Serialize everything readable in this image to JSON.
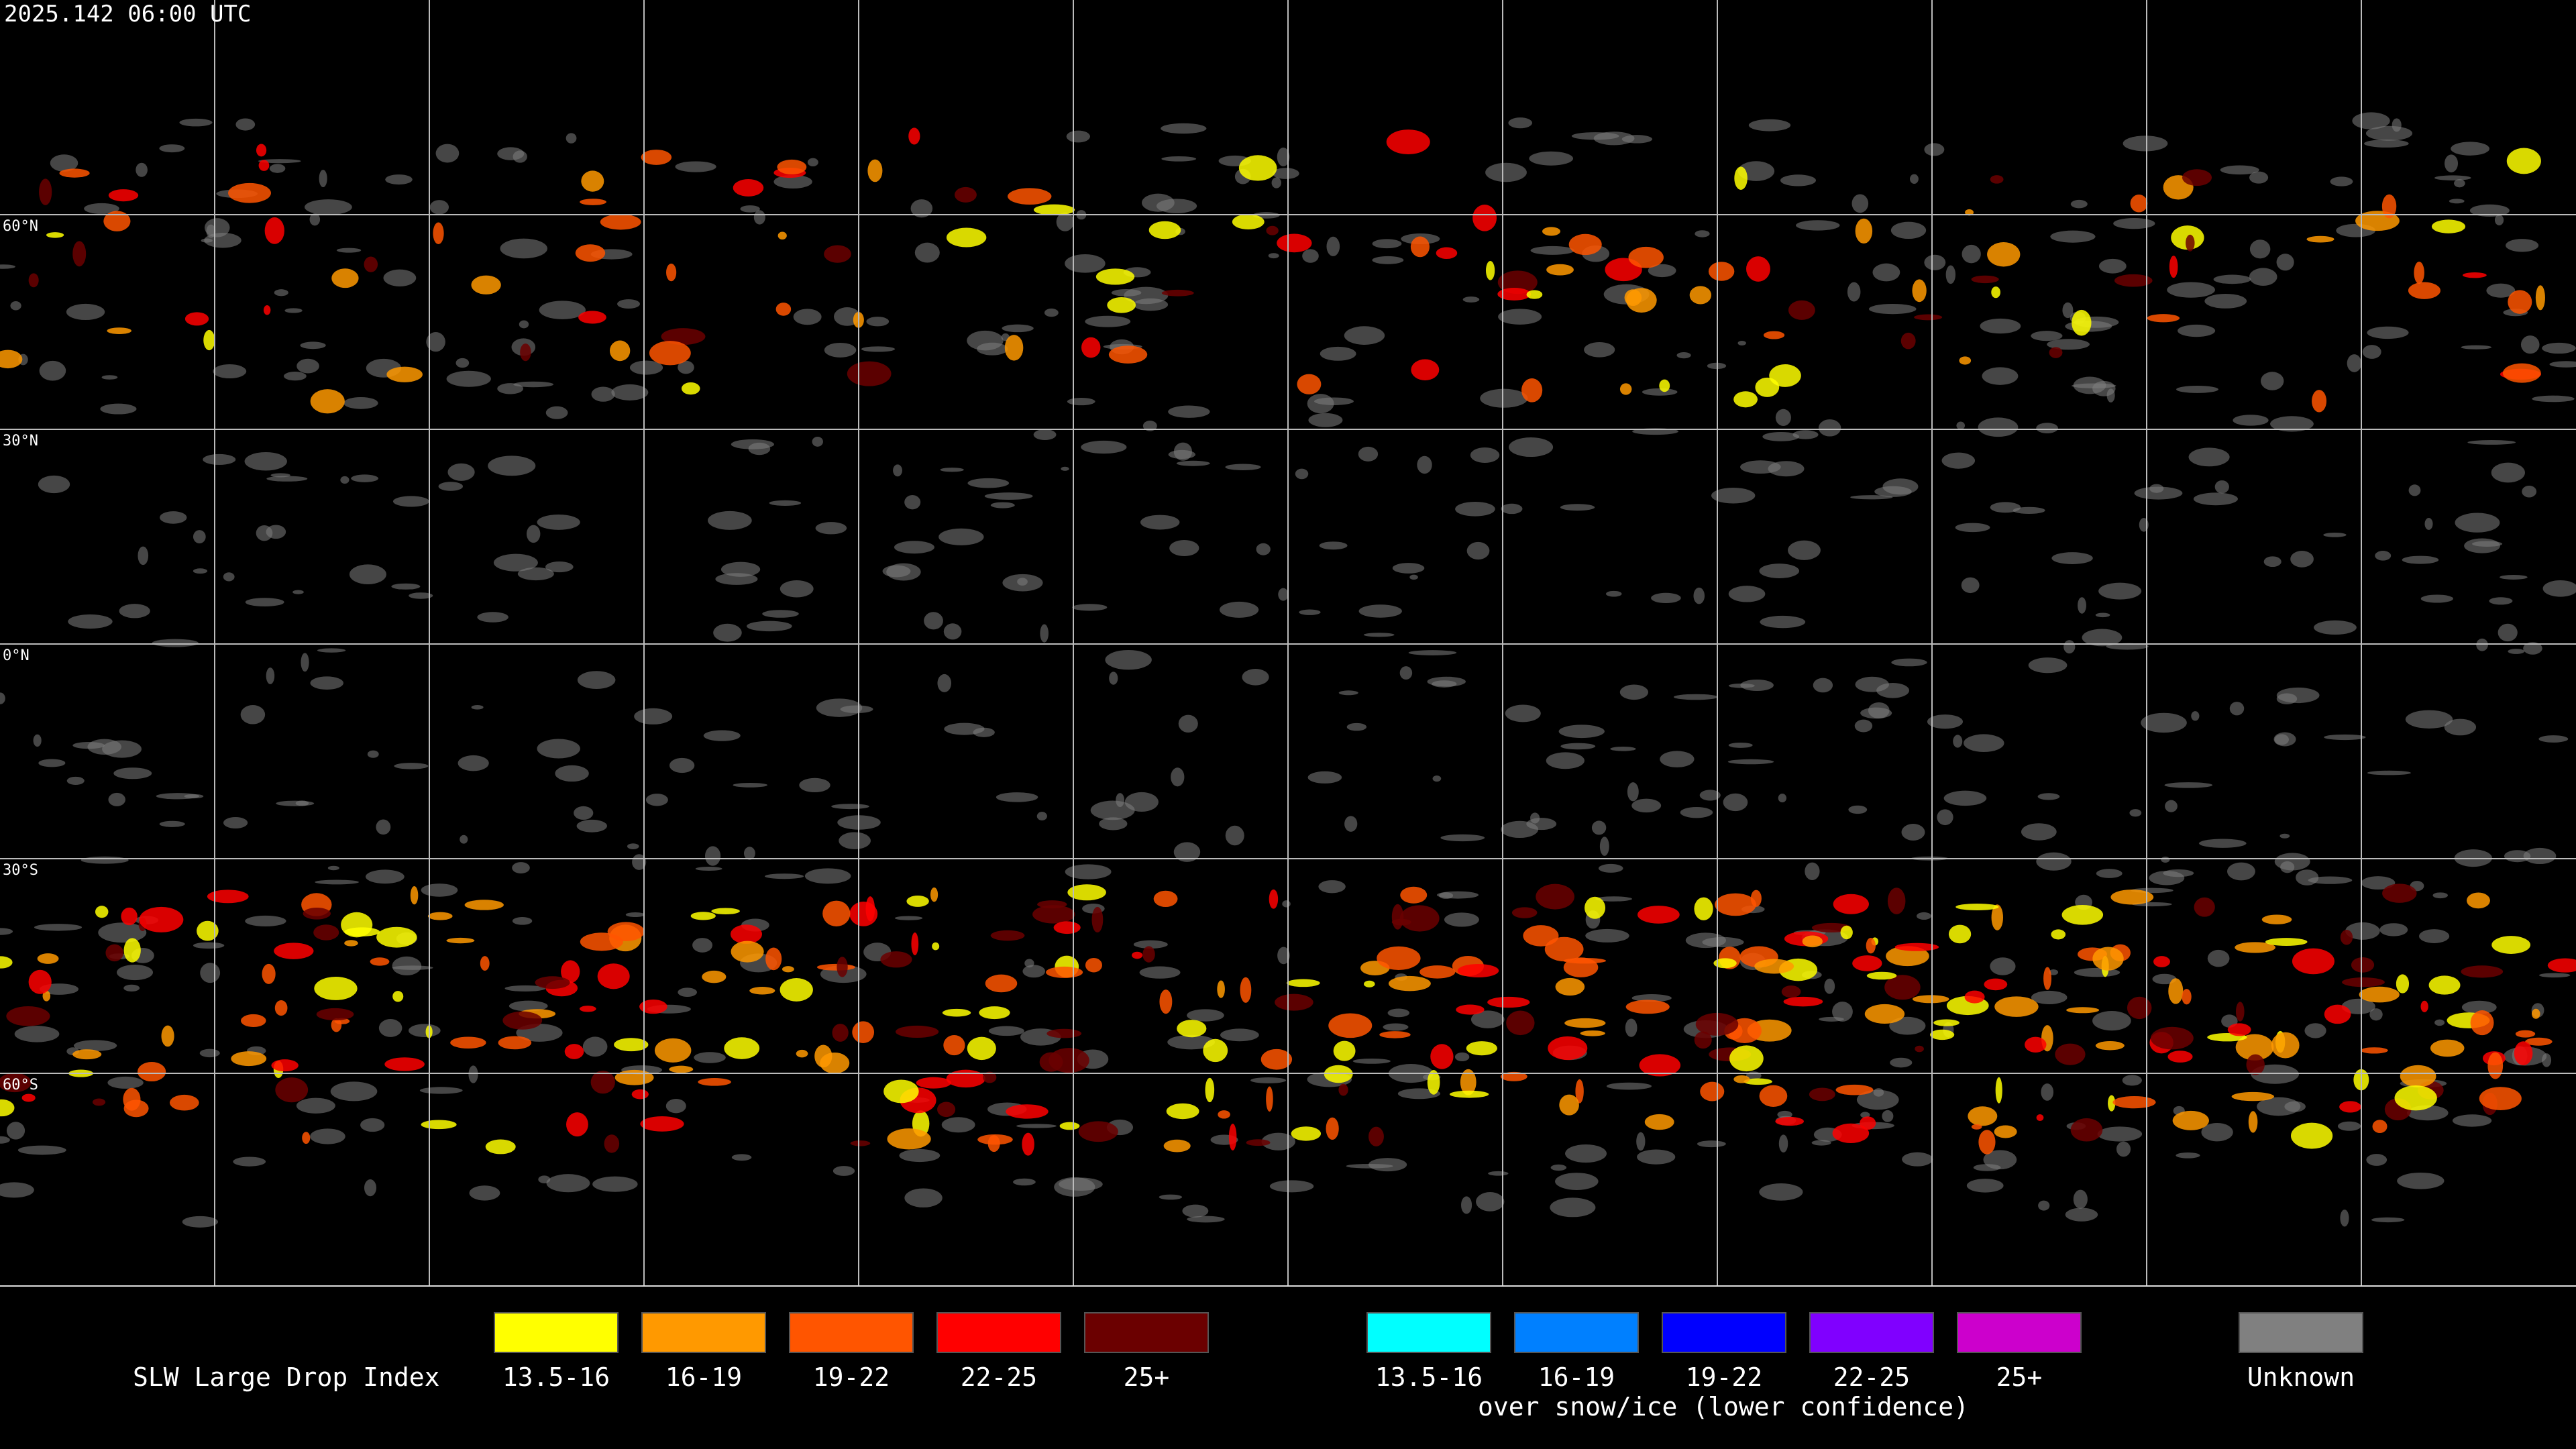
{
  "header": {
    "timestamp": "2025.142 06:00 UTC"
  },
  "map": {
    "lat_labels": [
      "60°N",
      "30°N",
      "0°N",
      "30°S",
      "60°S"
    ]
  },
  "legend": {
    "title": "SLW Large Drop Index",
    "groups": [
      {
        "items": [
          {
            "label": "13.5-16",
            "color": "#ffff00"
          },
          {
            "label": "16-19",
            "color": "#ff9900"
          },
          {
            "label": "19-22",
            "color": "#ff5500"
          },
          {
            "label": "22-25",
            "color": "#ff0000"
          },
          {
            "label": "25+",
            "color": "#6b0000"
          }
        ]
      },
      {
        "items": [
          {
            "label": "13.5-16",
            "color": "#00ffff"
          },
          {
            "label": "16-19",
            "color": "#0080ff"
          },
          {
            "label": "19-22",
            "color": "#0000ff"
          },
          {
            "label": "22-25",
            "color": "#8000ff"
          },
          {
            "label": "25+",
            "color": "#cc00cc"
          }
        ],
        "caption": "over snow/ice (lower confidence)"
      },
      {
        "items": [
          {
            "label": "Unknown",
            "color": "#808080"
          }
        ]
      }
    ]
  }
}
